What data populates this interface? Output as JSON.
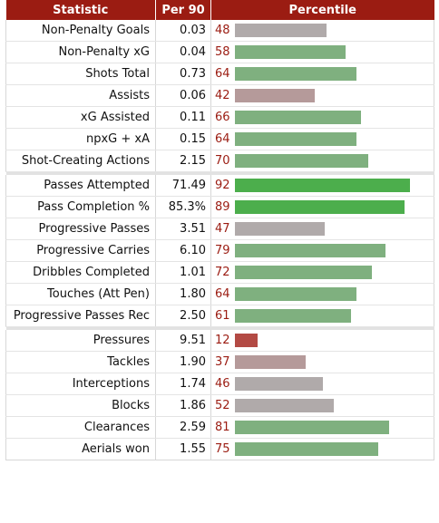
{
  "header": {
    "statistic": "Statistic",
    "per90": "Per 90",
    "percentile": "Percentile"
  },
  "colors": {
    "header_bg": "#9b1c12",
    "bar_high": "#4cae4c",
    "bar_good": "#7fb07f",
    "bar_mid": "#b0aaaa",
    "bar_low_mid": "#b59a9a",
    "bar_low": "#b34a44"
  },
  "groups": [
    [
      {
        "stat": "Non-Penalty Goals",
        "per90": "0.03",
        "pct": "48"
      },
      {
        "stat": "Non-Penalty xG",
        "per90": "0.04",
        "pct": "58"
      },
      {
        "stat": "Shots Total",
        "per90": "0.73",
        "pct": "64"
      },
      {
        "stat": "Assists",
        "per90": "0.06",
        "pct": "42"
      },
      {
        "stat": "xG Assisted",
        "per90": "0.11",
        "pct": "66"
      },
      {
        "stat": "npxG + xA",
        "per90": "0.15",
        "pct": "64"
      },
      {
        "stat": "Shot-Creating Actions",
        "per90": "2.15",
        "pct": "70"
      }
    ],
    [
      {
        "stat": "Passes Attempted",
        "per90": "71.49",
        "pct": "92"
      },
      {
        "stat": "Pass Completion %",
        "per90": "85.3%",
        "pct": "89"
      },
      {
        "stat": "Progressive Passes",
        "per90": "3.51",
        "pct": "47"
      },
      {
        "stat": "Progressive Carries",
        "per90": "6.10",
        "pct": "79"
      },
      {
        "stat": "Dribbles Completed",
        "per90": "1.01",
        "pct": "72"
      },
      {
        "stat": "Touches (Att Pen)",
        "per90": "1.80",
        "pct": "64"
      },
      {
        "stat": "Progressive Passes Rec",
        "per90": "2.50",
        "pct": "61"
      }
    ],
    [
      {
        "stat": "Pressures",
        "per90": "9.51",
        "pct": "12"
      },
      {
        "stat": "Tackles",
        "per90": "1.90",
        "pct": "37"
      },
      {
        "stat": "Interceptions",
        "per90": "1.74",
        "pct": "46"
      },
      {
        "stat": "Blocks",
        "per90": "1.86",
        "pct": "52"
      },
      {
        "stat": "Clearances",
        "per90": "2.59",
        "pct": "81"
      },
      {
        "stat": "Aerials won",
        "per90": "1.55",
        "pct": "75"
      }
    ]
  ]
}
